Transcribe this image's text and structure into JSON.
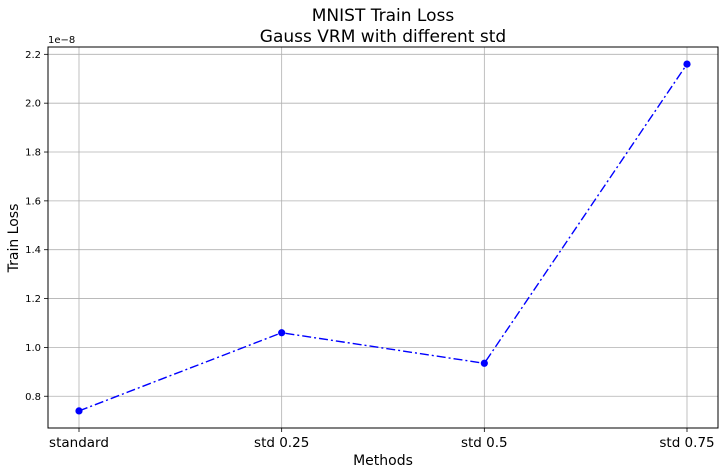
{
  "chart_data": {
    "type": "line",
    "title_lines": [
      "MNIST Train Loss",
      "Gauss VRM with different std"
    ],
    "xlabel": "Methods",
    "ylabel": "Train Loss",
    "y_offset_label": "1e−8",
    "categories": [
      "standard",
      "std 0.25",
      "std 0.5",
      "std 0.75"
    ],
    "series": [
      {
        "values": [
          0.74,
          1.06,
          0.935,
          2.16
        ],
        "color": "#0000ff",
        "line_style": "dash-dot",
        "marker": "circle"
      }
    ],
    "yticks": [
      "0.8",
      "1.0",
      "1.2",
      "1.4",
      "1.6",
      "1.8",
      "2.0",
      "2.2"
    ],
    "ylim": [
      0.67,
      2.23
    ],
    "grid": true,
    "grid_color": "#b0b0b0"
  }
}
